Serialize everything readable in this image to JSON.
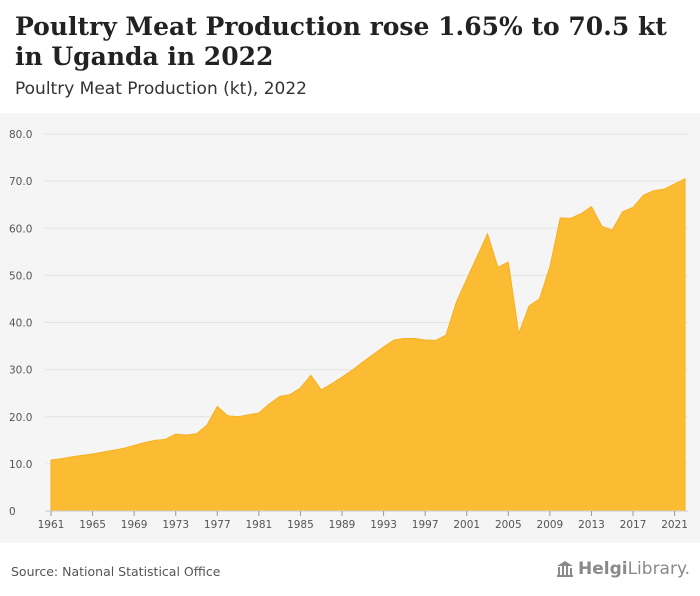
{
  "header": {
    "title": "Poultry Meat Production rose 1.65% to 70.5 kt in Uganda in 2022",
    "subtitle": "Poultry Meat Production (kt), 2022"
  },
  "footer": {
    "source": "Source: National Statistical Office",
    "brand_name_bold": "Helgi",
    "brand_name_light": "Library.",
    "brand_icon": "building-columns-icon"
  },
  "colors": {
    "area_fill": "#fbbc33",
    "area_stroke": "#f5b020",
    "grid": "#e3e3e3",
    "axis_text": "#555555"
  },
  "chart_data": {
    "type": "area",
    "title": "Poultry Meat Production (kt), 2022",
    "xlabel": "",
    "ylabel": "",
    "ylim": [
      0,
      80
    ],
    "xlim": [
      1961,
      2022
    ],
    "grid": true,
    "yticks": [
      "0",
      "10.0",
      "20.0",
      "30.0",
      "40.0",
      "50.0",
      "60.0",
      "70.0",
      "80.0"
    ],
    "xticks": [
      "1961",
      "1965",
      "1969",
      "1973",
      "1977",
      "1981",
      "1985",
      "1989",
      "1993",
      "1997",
      "2001",
      "2005",
      "2009",
      "2013",
      "2017",
      "2021"
    ],
    "x": [
      1961,
      1962,
      1963,
      1964,
      1965,
      1966,
      1967,
      1968,
      1969,
      1970,
      1971,
      1972,
      1973,
      1974,
      1975,
      1976,
      1977,
      1978,
      1979,
      1980,
      1981,
      1982,
      1983,
      1984,
      1985,
      1986,
      1987,
      1988,
      1989,
      1990,
      1991,
      1992,
      1993,
      1994,
      1995,
      1996,
      1997,
      1998,
      1999,
      2000,
      2001,
      2002,
      2003,
      2004,
      2005,
      2006,
      2007,
      2008,
      2009,
      2010,
      2011,
      2012,
      2013,
      2014,
      2015,
      2016,
      2017,
      2018,
      2019,
      2020,
      2021,
      2022
    ],
    "values": [
      10.8,
      11.1,
      11.5,
      11.8,
      12.1,
      12.5,
      12.9,
      13.3,
      13.9,
      14.5,
      15.0,
      15.2,
      16.3,
      16.1,
      16.4,
      18.2,
      22.2,
      20.2,
      20.0,
      20.4,
      20.8,
      22.7,
      24.3,
      24.7,
      26.1,
      28.8,
      25.7,
      27.0,
      28.4,
      29.9,
      31.6,
      33.2,
      34.8,
      36.3,
      36.6,
      36.6,
      36.3,
      36.2,
      37.3,
      44.3,
      49.2,
      54.0,
      58.8,
      51.7,
      52.8,
      37.6,
      43.5,
      45.0,
      51.8,
      62.2,
      62.1,
      63.1,
      64.6,
      60.4,
      59.6,
      63.5,
      64.4,
      67.0,
      68.0,
      68.3,
      69.4,
      70.5
    ]
  }
}
